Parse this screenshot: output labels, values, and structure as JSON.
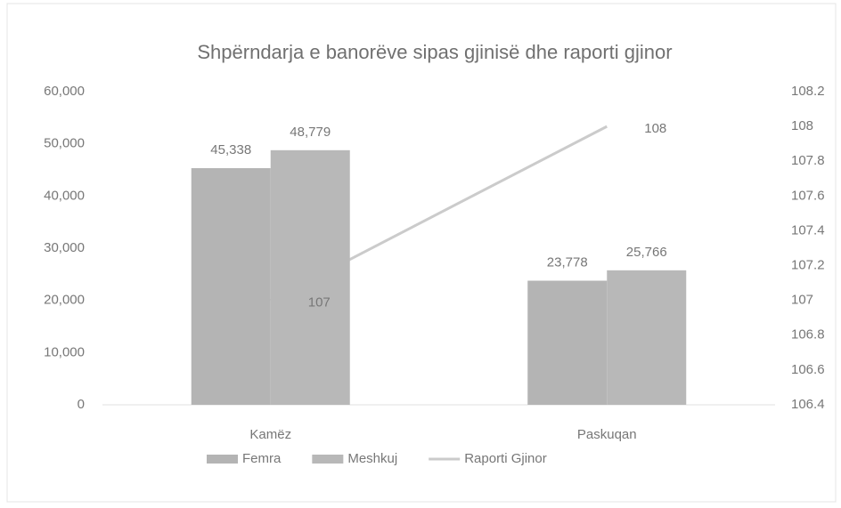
{
  "chart_data": {
    "type": "bar_line",
    "title": "Shpërndarja e banorëve sipas gjinisë dhe raporti gjinor",
    "categories": [
      "Kamëz",
      "Paskuqan"
    ],
    "series": [
      {
        "name": "Femra",
        "type": "bar",
        "color": "#b4b4b4",
        "values": [
          45338,
          23778
        ],
        "value_labels": [
          "45,338",
          "23,778"
        ]
      },
      {
        "name": "Meshkuj",
        "type": "bar",
        "color": "#b8b8b8",
        "values": [
          48779,
          25766
        ],
        "value_labels": [
          "48,779",
          "25,766"
        ]
      },
      {
        "name": "Raporti Gjinor",
        "type": "line",
        "axis": "y2",
        "color": "#cbcbcb",
        "values": [
          107,
          108
        ]
      }
    ],
    "ylim": [
      0,
      60000
    ],
    "yticks": [
      0,
      {
        "value": 10000,
        "label": "10,000"
      },
      {
        "value": 20000,
        "label": "20,000"
      },
      {
        "value": 30000,
        "label": "30,000"
      },
      {
        "value": 40000,
        "label": "40,000"
      },
      {
        "value": 50000,
        "label": "50,000"
      },
      {
        "value": 60000,
        "label": "60,000"
      }
    ],
    "y2lim": [
      106.4,
      108.2
    ],
    "y2ticks": [
      106.4,
      106.6,
      106.8,
      107,
      107.2,
      107.4,
      107.6,
      107.8,
      108,
      108.2
    ],
    "legend": "bottom"
  }
}
